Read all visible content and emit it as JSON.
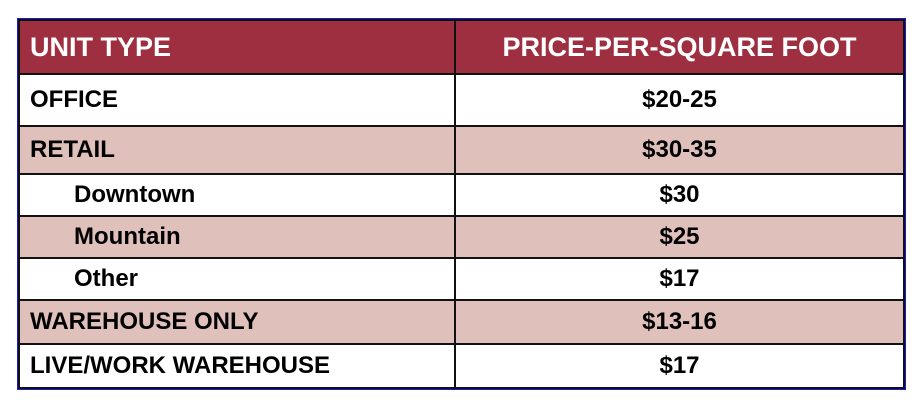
{
  "table": {
    "headers": [
      "UNIT TYPE",
      "PRICE-PER-SQUARE FOOT"
    ],
    "rows": [
      {
        "unit": "OFFICE",
        "price": "$20-25"
      },
      {
        "unit": "RETAIL",
        "price": "$30-35"
      },
      {
        "unit": "Downtown",
        "price": "$30"
      },
      {
        "unit": "Mountain",
        "price": "$25"
      },
      {
        "unit": "Other",
        "price": "$17"
      },
      {
        "unit": "WAREHOUSE ONLY",
        "price": "$13-16"
      },
      {
        "unit": "LIVE/WORK WAREHOUSE",
        "price": "$17"
      }
    ]
  },
  "colors": {
    "header": "#9e2f40",
    "alt_row": "#e0c0bb"
  }
}
